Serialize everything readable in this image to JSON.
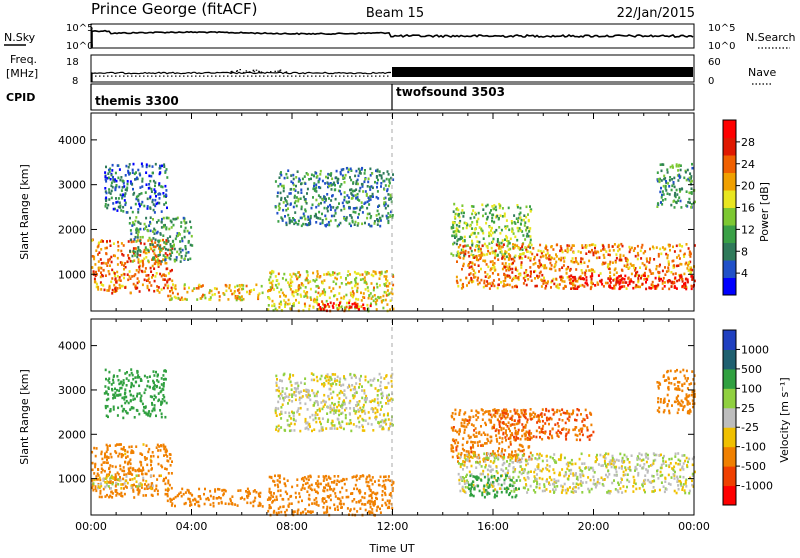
{
  "header": {
    "station": "Prince George (fitACF)",
    "beam": "Beam 15",
    "date": "22/Jan/2015"
  },
  "nsky": {
    "label": "N.Sky",
    "ticks": [
      "10^5",
      "10^0"
    ],
    "right_label": "N.Search",
    "right_ticks": [
      "10^5",
      "10^0"
    ]
  },
  "freq": {
    "label_line1": "Freq.",
    "label_line2": "[MHz]",
    "ticks": [
      "18",
      "8"
    ],
    "right_label": "Nave",
    "right_ticks": [
      "60",
      "0"
    ]
  },
  "cpid": {
    "label": "CPID",
    "programs": [
      {
        "name": "themis 3300",
        "start_hour": 0
      },
      {
        "name": "twofsound 3503",
        "start_hour": 12
      }
    ]
  },
  "chart_data": [
    {
      "type": "heatmap",
      "name": "Power",
      "ylabel": "Slant Range [km]",
      "xlabel": "",
      "xlim_hours": [
        0,
        24
      ],
      "ylim": [
        180,
        4600
      ],
      "yticks": [
        1000,
        2000,
        3000,
        4000
      ],
      "colorbar_label": "Power [dB]",
      "colorbar_ticks": [
        "4",
        "8",
        "12",
        "16",
        "20",
        "24",
        "28"
      ],
      "colorbar_range": [
        0,
        30
      ],
      "regions": [
        {
          "t0": 0.0,
          "t1": 3.2,
          "r0": 600,
          "r1": 1800,
          "v": 22
        },
        {
          "t0": 1.5,
          "t1": 4.0,
          "r0": 1300,
          "r1": 2300,
          "v": 10
        },
        {
          "t0": 3.0,
          "t1": 6.8,
          "r0": 450,
          "r1": 800,
          "v": 18
        },
        {
          "t0": 7.3,
          "t1": 12.0,
          "r0": 2100,
          "r1": 3400,
          "v": 8
        },
        {
          "t0": 7.0,
          "t1": 12.0,
          "r0": 200,
          "r1": 1100,
          "v": 17
        },
        {
          "t0": 9.0,
          "t1": 11.2,
          "r0": 200,
          "r1": 400,
          "v": 27
        },
        {
          "t0": 14.3,
          "t1": 17.5,
          "r0": 1400,
          "r1": 2600,
          "v": 13
        },
        {
          "t0": 14.5,
          "t1": 24.0,
          "r0": 700,
          "r1": 1700,
          "v": 21
        },
        {
          "t0": 19.0,
          "t1": 24.0,
          "r0": 700,
          "r1": 1000,
          "v": 28
        },
        {
          "t0": 0.5,
          "t1": 3.0,
          "r0": 2400,
          "r1": 3500,
          "v": 6
        },
        {
          "t0": 22.5,
          "t1": 24.0,
          "r0": 2500,
          "r1": 3500,
          "v": 9
        }
      ]
    },
    {
      "type": "heatmap",
      "name": "Velocity",
      "ylabel": "Slant Range [km]",
      "xlabel": "Time UT",
      "xlim_hours": [
        0,
        24
      ],
      "ylim": [
        180,
        4600
      ],
      "yticks": [
        1000,
        2000,
        3000,
        4000
      ],
      "xticks": [
        "00:00",
        "04:00",
        "08:00",
        "12:00",
        "16:00",
        "20:00",
        "00:00"
      ],
      "colorbar_label": "Velocity [m s⁻¹]",
      "colorbar_ticks": [
        "-1000",
        "-500",
        "-100",
        "-25",
        "25",
        "100",
        "500",
        "1000"
      ],
      "regions": [
        {
          "t0": 0.0,
          "t1": 3.2,
          "r0": 600,
          "r1": 1800,
          "v": -120
        },
        {
          "t0": 0.0,
          "t1": 2.5,
          "r0": 800,
          "r1": 1100,
          "v": 0
        },
        {
          "t0": 3.0,
          "t1": 6.8,
          "r0": 400,
          "r1": 800,
          "v": -150
        },
        {
          "t0": 7.3,
          "t1": 12.0,
          "r0": 2100,
          "r1": 3400,
          "v": 0
        },
        {
          "t0": 7.0,
          "t1": 12.0,
          "r0": 200,
          "r1": 1100,
          "v": -200
        },
        {
          "t0": 14.3,
          "t1": 17.5,
          "r0": 1400,
          "r1": 2600,
          "v": -250
        },
        {
          "t0": 14.5,
          "t1": 24.0,
          "r0": 700,
          "r1": 1600,
          "v": 0
        },
        {
          "t0": 16.0,
          "t1": 20.0,
          "r0": 1900,
          "r1": 2600,
          "v": -300
        },
        {
          "t0": 0.5,
          "t1": 3.0,
          "r0": 2400,
          "r1": 3500,
          "v": 150
        },
        {
          "t0": 22.5,
          "t1": 24.0,
          "r0": 2500,
          "r1": 3500,
          "v": -200
        },
        {
          "t0": 15.0,
          "t1": 17.0,
          "r0": 600,
          "r1": 1100,
          "v": 120
        }
      ]
    }
  ]
}
